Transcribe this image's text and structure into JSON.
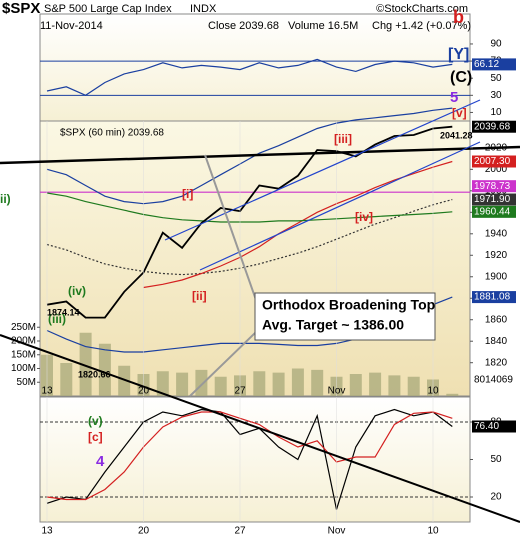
{
  "header": {
    "ticker": "$SPX",
    "name": "S&P 500 Large Cap Index",
    "exchange": "INDX",
    "date": "11-Nov-2014",
    "close": "Close 2039.68",
    "volume": "Volume 16.5M",
    "change": "Chg +1.42 (+0.07%)",
    "watermark": "©StockCharts.com"
  },
  "callout": {
    "line1": "Orthodox Broadening Top",
    "line2": "Avg. Target ~ 1386.00"
  },
  "chart_data": [
    {
      "type": "line",
      "ylim": [
        0,
        125
      ],
      "yticks": [
        10,
        30,
        50,
        70,
        90
      ],
      "reference_lines": [
        30,
        70
      ],
      "series": [
        {
          "name": "RSI",
          "color": "#1a3fa0",
          "values": [
            35,
            40,
            30,
            45,
            55,
            60,
            68,
            62,
            65,
            63,
            60,
            68,
            62,
            65,
            72,
            63,
            58,
            66,
            70,
            68,
            63,
            66.12
          ]
        }
      ],
      "annotations": [
        "b",
        "[Y]",
        "(C)",
        "5",
        "[v]"
      ]
    },
    {
      "type": "line",
      "legend": "$SPX (60 min) 2039.68",
      "categories": [
        "13",
        null,
        null,
        null,
        null,
        "20",
        null,
        null,
        null,
        null,
        "27",
        null,
        null,
        null,
        null,
        "Nov",
        null,
        null,
        null,
        null,
        "10",
        null
      ],
      "ylim": [
        1789,
        2045
      ],
      "yticks": [
        1820,
        1840,
        1860,
        1880,
        1900,
        1920,
        1940,
        1960,
        1980,
        2000,
        2020
      ],
      "y2lim": [
        0,
        1000000000
      ],
      "y2ticks": [
        {
          "value": 50000000,
          "label": "50M"
        },
        {
          "value": 100000000,
          "label": "100M"
        },
        {
          "value": 150000000,
          "label": "150M"
        },
        {
          "value": 200000000,
          "label": "200M"
        },
        {
          "value": 250000000,
          "label": "250M"
        }
      ],
      "series": [
        {
          "name": "Volume",
          "color": "#a8a87a",
          "axis": "y2",
          "values": [
            150000000,
            120000000,
            230000000,
            190000000,
            110000000,
            80000000,
            90000000,
            85000000,
            95000000,
            70000000,
            75000000,
            90000000,
            85000000,
            100000000,
            95000000,
            70000000,
            80000000,
            85000000,
            75000000,
            70000000,
            60000000,
            8014069
          ]
        },
        {
          "name": "Upper band",
          "color": "#1a3fa0",
          "values": [
            2000,
            1995,
            1985,
            1975,
            1970,
            1968,
            1970,
            1975,
            1985,
            1995,
            2005,
            2015,
            2022,
            2030,
            2038,
            2043,
            2046,
            2048,
            2050,
            2052,
            2055,
            2057
          ]
        },
        {
          "name": "Lower band",
          "color": "#1a3fa0",
          "values": [
            1850,
            1842,
            1835,
            1832,
            1830,
            1830,
            1832,
            1834,
            1836,
            1838,
            1838,
            1838,
            1837,
            1836,
            1836,
            1838,
            1842,
            1848,
            1856,
            1865,
            1874,
            1881.08
          ],
          "value_labels": [
            null,
            null,
            null,
            null,
            null,
            null,
            null,
            null,
            null,
            null,
            null,
            null,
            null,
            null,
            null,
            null,
            null,
            null,
            null,
            null,
            null,
            "1881.08"
          ]
        },
        {
          "name": "Middle band",
          "color": "#333333",
          "dash": true,
          "values": [
            1930,
            1925,
            1918,
            1912,
            1908,
            1905,
            1903,
            1902,
            1903,
            1905,
            1908,
            1912,
            1917,
            1922,
            1928,
            1935,
            1942,
            1949,
            1955,
            1961,
            1967,
            1971.9
          ],
          "value_labels": [
            null,
            null,
            null,
            null,
            null,
            null,
            null,
            null,
            null,
            null,
            null,
            null,
            null,
            null,
            null,
            null,
            null,
            null,
            null,
            null,
            null,
            "1971.90"
          ]
        },
        {
          "name": "MA red",
          "color": "#d42020",
          "values": [
            null,
            null,
            null,
            null,
            null,
            1890,
            1893,
            1897,
            1903,
            1910,
            1918,
            1928,
            1940,
            1950,
            1960,
            1968,
            1975,
            1983,
            1990,
            1996,
            2002,
            2007.3
          ],
          "value_labels": [
            null,
            null,
            null,
            null,
            null,
            null,
            null,
            null,
            null,
            null,
            null,
            null,
            null,
            null,
            null,
            null,
            null,
            null,
            null,
            null,
            null,
            "2007.30"
          ]
        },
        {
          "name": "MA green",
          "color": "#1e7a1e",
          "values": [
            1978,
            1975,
            1970,
            1966,
            1962,
            1958,
            1955,
            1953,
            1952,
            1951,
            1951,
            1951,
            1952,
            1952,
            1953,
            1954,
            1955,
            1956,
            1957,
            1958,
            1959,
            1960.44
          ],
          "value_labels": [
            null,
            null,
            null,
            null,
            null,
            null,
            null,
            null,
            null,
            null,
            null,
            null,
            null,
            null,
            null,
            null,
            null,
            null,
            null,
            null,
            null,
            "1960.44"
          ]
        },
        {
          "name": "$SPX",
          "color": "#000000",
          "values": [
            1874,
            1877,
            1862,
            1862,
            1886,
            1904,
            1941,
            1927,
            1950,
            1964,
            1961,
            1985,
            1982,
            1994,
            2018,
            2017,
            2012,
            2023,
            2031,
            2032,
            2038,
            2039.68
          ],
          "value_labels": [
            null,
            null,
            null,
            null,
            null,
            null,
            null,
            null,
            null,
            null,
            null,
            null,
            null,
            null,
            null,
            null,
            null,
            null,
            null,
            null,
            null,
            "2039.68"
          ]
        }
      ],
      "hlines": [
        {
          "value": 1978.73,
          "label": "1978.73",
          "color": "#cc33cc"
        }
      ],
      "annotations": [
        "[iii]",
        "[i]",
        "[ii]",
        "[iv]",
        "(iv)",
        "(iii)",
        "ii)",
        "1874.14",
        "1820.66",
        "2041.28"
      ]
    },
    {
      "type": "line",
      "categories": [
        "13",
        null,
        null,
        null,
        null,
        "20",
        null,
        null,
        null,
        null,
        "27",
        null,
        null,
        null,
        null,
        "Nov",
        null,
        null,
        null,
        null,
        "10",
        null
      ],
      "ylim": [
        0,
        100
      ],
      "yticks": [
        20,
        50,
        80
      ],
      "reference_lines": [
        20,
        80
      ],
      "series": [
        {
          "name": "%K",
          "color": "#000000",
          "values": [
            15,
            20,
            18,
            40,
            60,
            80,
            88,
            85,
            90,
            88,
            70,
            75,
            60,
            50,
            85,
            10,
            60,
            85,
            90,
            85,
            88,
            76.4
          ],
          "value_labels": [
            null,
            null,
            null,
            null,
            null,
            null,
            null,
            null,
            null,
            null,
            null,
            null,
            null,
            null,
            null,
            null,
            null,
            null,
            null,
            null,
            null,
            "76.40"
          ]
        },
        {
          "name": "%D",
          "color": "#d42020",
          "values": [
            20,
            18,
            18,
            26,
            40,
            60,
            76,
            84,
            88,
            88,
            83,
            78,
            68,
            60,
            65,
            48,
            52,
            52,
            78,
            87,
            88,
            83
          ]
        }
      ],
      "annotations": [
        "(v)",
        "[c]",
        "4"
      ]
    }
  ]
}
